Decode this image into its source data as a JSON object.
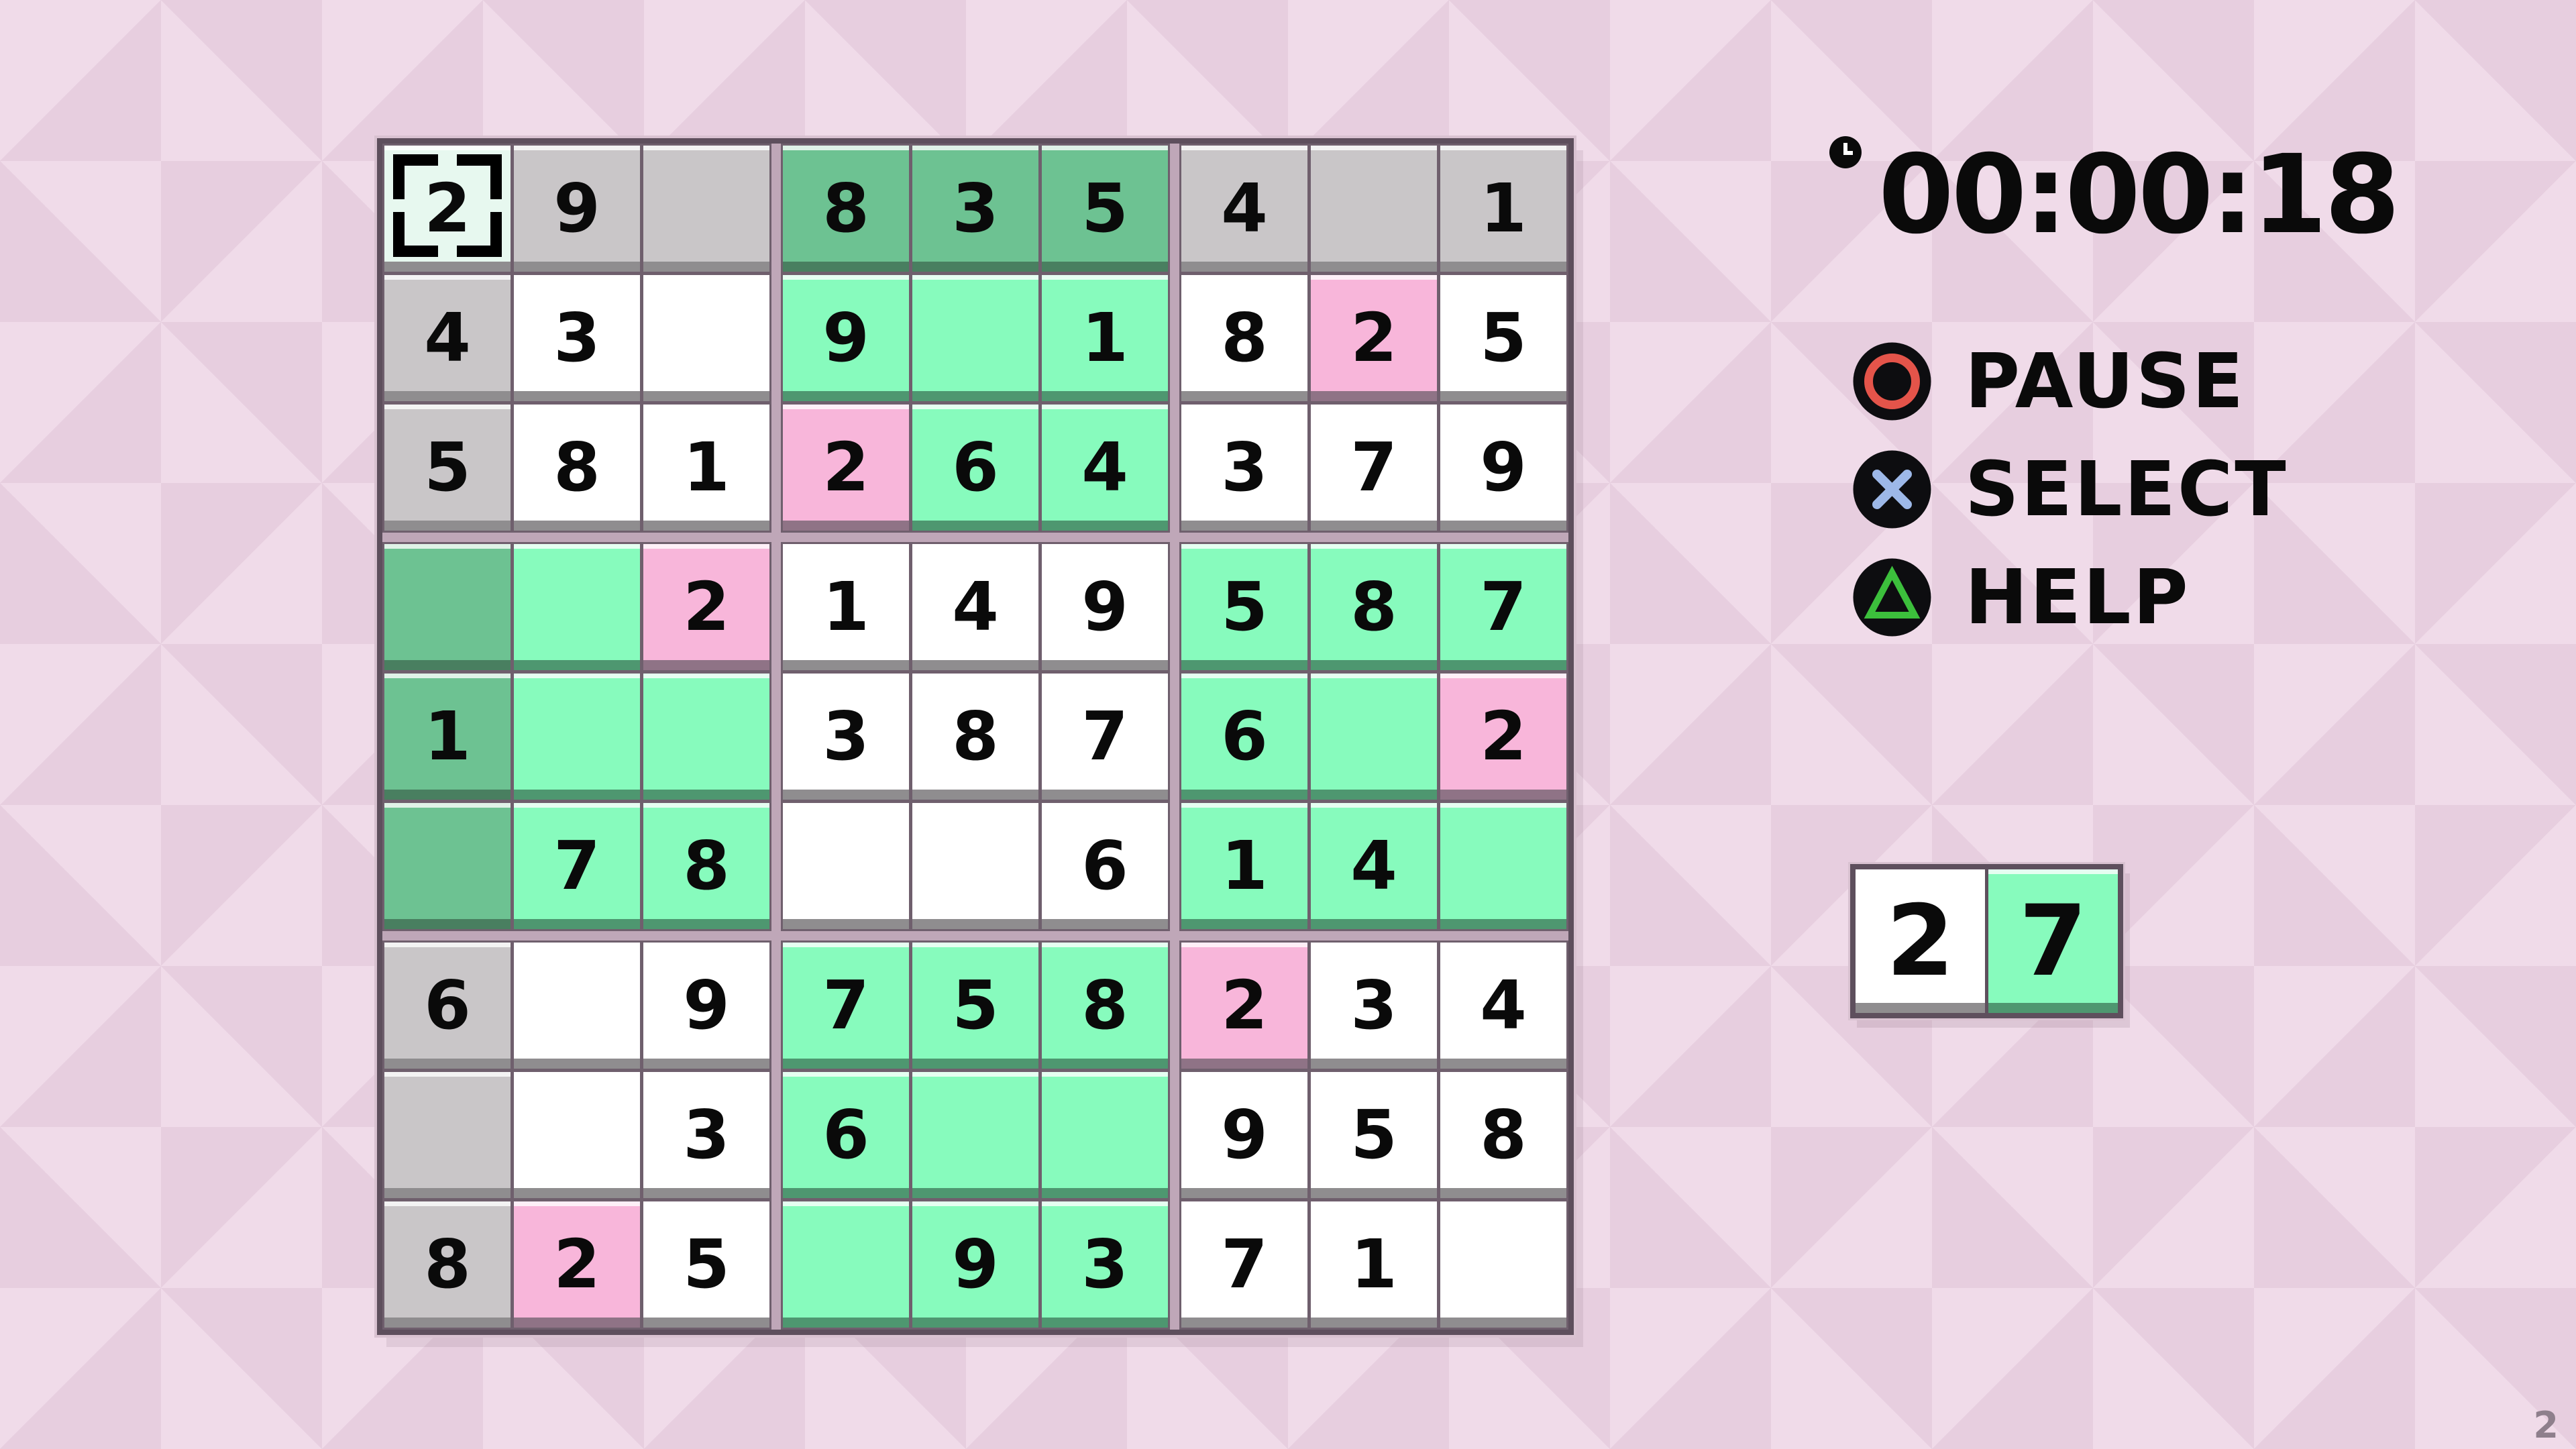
{
  "app": {
    "watermark": "2"
  },
  "colors": {
    "bg-light": "#F0DBE9",
    "bg-dark": "#E7CEDF",
    "line-thin": "#6F5F6D",
    "line-outer": "#5E4F5D",
    "block-gap": "#BFA7B8",
    "rim": "#D9C2D1",
    "cell-white": "#FFFFFF",
    "cell-gray": "#C9C6C8",
    "cell-dgreen": "#6DC292",
    "cell-mint": "#87FBBD",
    "cell-pink": "#F8B6DA",
    "cell-sel": "#E7F8EF",
    "strip-gray": "#8F8D8F",
    "strip-dgreen": "#497F60",
    "strip-mint": "#4E9770",
    "strip-pink": "#8F7386",
    "ps-red": "#E4544A",
    "ps-blue": "#9DB8E8",
    "ps-green": "#3CBF3C",
    "num": "#0A0A0A",
    "wm": "#8E7F8C"
  },
  "timer": {
    "icon": "clock-icon",
    "value": "00:00:18"
  },
  "menu": {
    "items": [
      {
        "id": "pause",
        "icon": "circle-button-icon",
        "label": "PAUSE"
      },
      {
        "id": "select",
        "icon": "cross-button-icon",
        "label": "SELECT"
      },
      {
        "id": "help",
        "icon": "triangle-button-icon",
        "label": "HELP"
      }
    ]
  },
  "board": {
    "legend": {
      "sel": "selected cell (cursor brackets)",
      "gray": "given clue cell",
      "white": "empty-area cell",
      "dgreen": "completed-group given cell",
      "mint": "highlighted group cell",
      "pink": "conflict/error cell"
    },
    "rows": [
      [
        {
          "v": "2",
          "c": "sel"
        },
        {
          "v": "9",
          "c": "gray"
        },
        {
          "v": "",
          "c": "gray"
        },
        {
          "v": "8",
          "c": "dgreen"
        },
        {
          "v": "3",
          "c": "dgreen"
        },
        {
          "v": "5",
          "c": "dgreen"
        },
        {
          "v": "4",
          "c": "gray"
        },
        {
          "v": "",
          "c": "gray"
        },
        {
          "v": "1",
          "c": "gray"
        }
      ],
      [
        {
          "v": "4",
          "c": "gray"
        },
        {
          "v": "3",
          "c": "white"
        },
        {
          "v": "",
          "c": "white"
        },
        {
          "v": "9",
          "c": "mint"
        },
        {
          "v": "",
          "c": "mint"
        },
        {
          "v": "1",
          "c": "mint"
        },
        {
          "v": "8",
          "c": "white"
        },
        {
          "v": "2",
          "c": "pink"
        },
        {
          "v": "5",
          "c": "white"
        }
      ],
      [
        {
          "v": "5",
          "c": "gray"
        },
        {
          "v": "8",
          "c": "white"
        },
        {
          "v": "1",
          "c": "white"
        },
        {
          "v": "2",
          "c": "pink"
        },
        {
          "v": "6",
          "c": "mint"
        },
        {
          "v": "4",
          "c": "mint"
        },
        {
          "v": "3",
          "c": "white"
        },
        {
          "v": "7",
          "c": "white"
        },
        {
          "v": "9",
          "c": "white"
        }
      ],
      [
        {
          "v": "",
          "c": "dgreen"
        },
        {
          "v": "",
          "c": "mint"
        },
        {
          "v": "2",
          "c": "pink"
        },
        {
          "v": "1",
          "c": "white"
        },
        {
          "v": "4",
          "c": "white"
        },
        {
          "v": "9",
          "c": "white"
        },
        {
          "v": "5",
          "c": "mint"
        },
        {
          "v": "8",
          "c": "mint"
        },
        {
          "v": "7",
          "c": "mint"
        }
      ],
      [
        {
          "v": "1",
          "c": "dgreen"
        },
        {
          "v": "",
          "c": "mint"
        },
        {
          "v": "",
          "c": "mint"
        },
        {
          "v": "3",
          "c": "white"
        },
        {
          "v": "8",
          "c": "white"
        },
        {
          "v": "7",
          "c": "white"
        },
        {
          "v": "6",
          "c": "mint"
        },
        {
          "v": "",
          "c": "mint"
        },
        {
          "v": "2",
          "c": "pink"
        }
      ],
      [
        {
          "v": "",
          "c": "dgreen"
        },
        {
          "v": "7",
          "c": "mint"
        },
        {
          "v": "8",
          "c": "mint"
        },
        {
          "v": "",
          "c": "white"
        },
        {
          "v": "",
          "c": "white"
        },
        {
          "v": "6",
          "c": "white"
        },
        {
          "v": "1",
          "c": "mint"
        },
        {
          "v": "4",
          "c": "mint"
        },
        {
          "v": "",
          "c": "mint"
        }
      ],
      [
        {
          "v": "6",
          "c": "gray"
        },
        {
          "v": "",
          "c": "white"
        },
        {
          "v": "9",
          "c": "white"
        },
        {
          "v": "7",
          "c": "mint"
        },
        {
          "v": "5",
          "c": "mint"
        },
        {
          "v": "8",
          "c": "mint"
        },
        {
          "v": "2",
          "c": "pink"
        },
        {
          "v": "3",
          "c": "white"
        },
        {
          "v": "4",
          "c": "white"
        }
      ],
      [
        {
          "v": "",
          "c": "gray"
        },
        {
          "v": "",
          "c": "white"
        },
        {
          "v": "3",
          "c": "white"
        },
        {
          "v": "6",
          "c": "mint"
        },
        {
          "v": "",
          "c": "mint"
        },
        {
          "v": "",
          "c": "mint"
        },
        {
          "v": "9",
          "c": "white"
        },
        {
          "v": "5",
          "c": "white"
        },
        {
          "v": "8",
          "c": "white"
        }
      ],
      [
        {
          "v": "8",
          "c": "gray"
        },
        {
          "v": "2",
          "c": "pink"
        },
        {
          "v": "5",
          "c": "white"
        },
        {
          "v": "",
          "c": "mint"
        },
        {
          "v": "9",
          "c": "mint"
        },
        {
          "v": "3",
          "c": "mint"
        },
        {
          "v": "7",
          "c": "white"
        },
        {
          "v": "1",
          "c": "white"
        },
        {
          "v": "",
          "c": "white"
        }
      ]
    ]
  },
  "picker": {
    "cells": [
      {
        "v": "2",
        "c": "white"
      },
      {
        "v": "7",
        "c": "mint"
      }
    ]
  }
}
